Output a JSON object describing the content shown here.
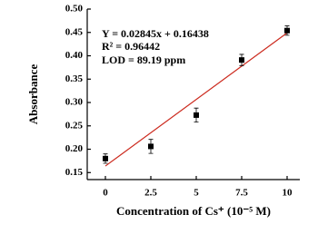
{
  "chart_data": {
    "type": "scatter",
    "x_label": "Concentration of Cs⁺ (10⁻⁵ M)",
    "y_label": "Absorbance",
    "annotations": [
      "Y = 0.02845x + 0.16438",
      "R² = 0.96442",
      "LOD = 89.19 ppm"
    ],
    "series": [
      {
        "x": [
          0,
          2.5,
          5,
          7.5,
          10
        ],
        "values": [
          0.18,
          0.206,
          0.273,
          0.391,
          0.454
        ],
        "errors": [
          0.01,
          0.015,
          0.015,
          0.012,
          0.01
        ],
        "color": "#000000"
      }
    ],
    "fit_line": {
      "x": [
        0,
        10
      ],
      "values": [
        0.164,
        0.449
      ],
      "color": "#cc2a1e"
    },
    "xlim": [
      -1,
      10.7
    ],
    "ylim": [
      0.135,
      0.5
    ],
    "xticks": [
      0,
      2.5,
      5,
      7.5,
      10
    ],
    "yticks": [
      {
        "value": 0.15,
        "label": "0.15"
      },
      {
        "value": 0.2,
        "label": "0.20"
      },
      {
        "value": 0.25,
        "label": "0.25"
      },
      {
        "value": 0.3,
        "label": "0.30"
      },
      {
        "value": 0.35,
        "label": "0.35"
      },
      {
        "value": 0.4,
        "label": "0.40"
      },
      {
        "value": 0.45,
        "label": "0.45"
      },
      {
        "value": 0.5,
        "label": "0.50"
      }
    ]
  }
}
